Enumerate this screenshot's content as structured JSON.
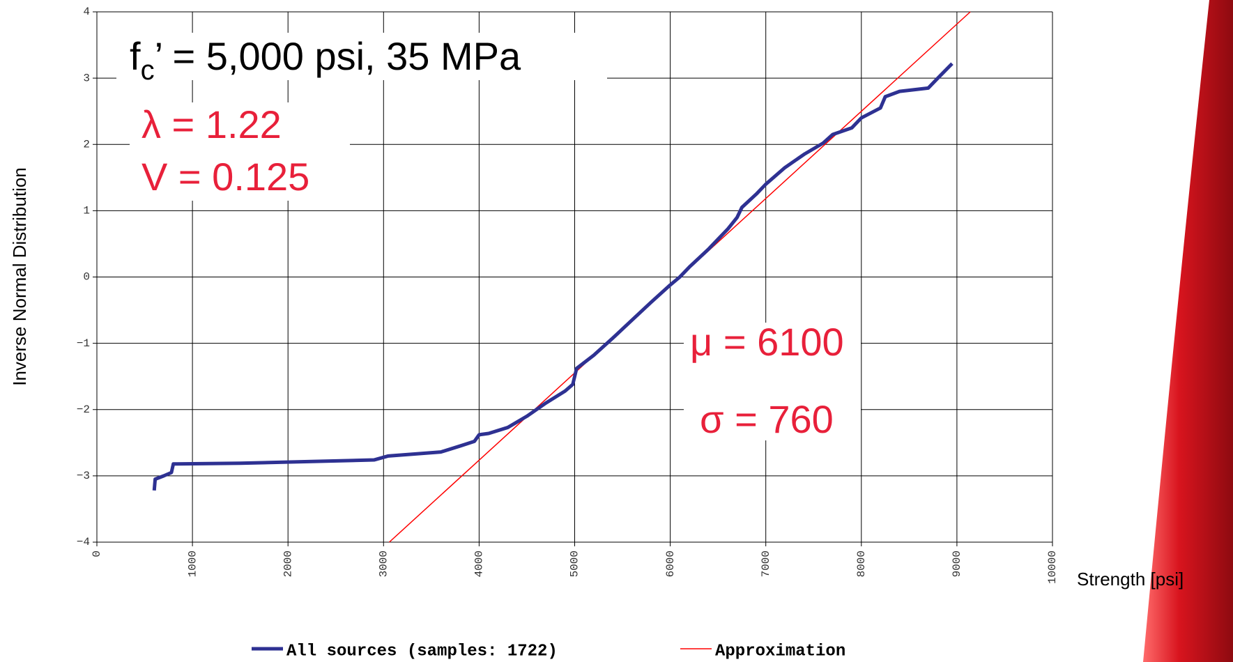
{
  "chart_data": {
    "type": "line",
    "x_label": "Strength [psi]",
    "y_label": "Inverse Normal Distribution",
    "header_note": {
      "base": "f",
      "sub": "c",
      "text": "’ =  5,000 psi, 35 MPa"
    },
    "annotations": [
      "λ = 1.22",
      "V = 0.125",
      "μ = 6100",
      "σ = 760"
    ],
    "xlim": [
      0,
      10000
    ],
    "ylim": [
      -4,
      4
    ],
    "xticks": [
      0,
      1000,
      2000,
      3000,
      4000,
      5000,
      6000,
      7000,
      8000,
      9000,
      10000
    ],
    "yticks": [
      {
        "value": -4,
        "label": "−4"
      },
      {
        "value": -3,
        "label": "−3"
      },
      {
        "value": -2,
        "label": "−2"
      },
      {
        "value": -1,
        "label": "−1"
      },
      0,
      1,
      2,
      3,
      4
    ],
    "grid": true,
    "series": [
      {
        "name": "All sources (samples: 1722)",
        "color": "#2e3192",
        "width": 5,
        "x": [
          600,
          610,
          700,
          780,
          800,
          1500,
          2900,
          3050,
          3600,
          3800,
          3950,
          4000,
          4100,
          4300,
          4500,
          4700,
          4900,
          4980,
          5000,
          5020,
          5200,
          5400,
          5600,
          5800,
          6000,
          6100,
          6200,
          6400,
          6600,
          6700,
          6750,
          6900,
          7000,
          7200,
          7400,
          7600,
          7700,
          7900,
          8000,
          8200,
          8250,
          8400,
          8700,
          8800,
          8950
        ],
        "values": [
          -3.22,
          -3.05,
          -3.0,
          -2.95,
          -2.82,
          -2.81,
          -2.76,
          -2.7,
          -2.64,
          -2.55,
          -2.48,
          -2.38,
          -2.36,
          -2.27,
          -2.1,
          -1.9,
          -1.72,
          -1.62,
          -1.5,
          -1.38,
          -1.18,
          -0.92,
          -0.65,
          -0.38,
          -0.12,
          0.0,
          0.15,
          0.42,
          0.72,
          0.9,
          1.05,
          1.25,
          1.4,
          1.65,
          1.85,
          2.02,
          2.15,
          2.25,
          2.4,
          2.55,
          2.72,
          2.8,
          2.85,
          3.0,
          3.22
        ]
      },
      {
        "name": "Approximation",
        "color": "#ff0000",
        "width": 1.5,
        "x": [
          3060,
          9140
        ],
        "values": [
          -4,
          4
        ]
      }
    ]
  }
}
